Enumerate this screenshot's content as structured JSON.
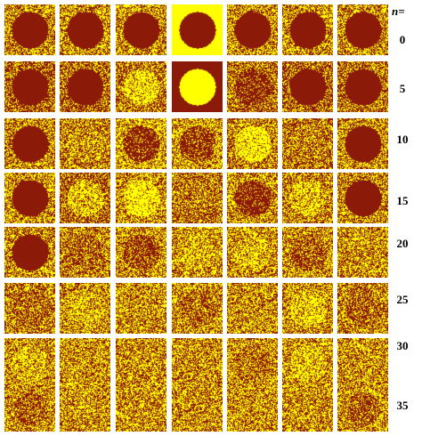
{
  "header_label": "n=",
  "colors": {
    "dark": "#8c1a08",
    "light": "#ffff00"
  },
  "rows": [
    {
      "label": "0",
      "cells": [
        0.5,
        0.5,
        0.5,
        "special-yellow-bg-dark-disk",
        0.5,
        0.5,
        0.5
      ],
      "disk": [
        0,
        0,
        0,
        0.0,
        0,
        0,
        0
      ]
    },
    {
      "label": "5",
      "cells": [
        0.35,
        0.35,
        0.4,
        "special-dark-bg-yellow-disk",
        0.4,
        0.35,
        0.4
      ],
      "disk": [
        0,
        0,
        0.75,
        1.0,
        0.15,
        0,
        0
      ]
    },
    {
      "label": "10",
      "cells": [
        0.45,
        0.45,
        0.6,
        0.55,
        0.45,
        0.4,
        0.5
      ],
      "disk": [
        0,
        0.55,
        0.15,
        0.2,
        0.85,
        0.45,
        0
      ]
    },
    {
      "label": "15",
      "cells": [
        0.5,
        0.35,
        0.5,
        0.4,
        0.5,
        0.45,
        0.45
      ],
      "disk": [
        0,
        0.7,
        0.85,
        0.4,
        0.15,
        0.7,
        0
      ]
    },
    {
      "label": "20",
      "cells": [
        0.5,
        0.45,
        0.5,
        0.5,
        0.5,
        0.5,
        0.5
      ],
      "disk": [
        0,
        0.35,
        0.25,
        0.65,
        0.65,
        0.3,
        0.5
      ]
    },
    {
      "label": "25",
      "cells": [
        0.45,
        0.5,
        0.5,
        0.5,
        0.5,
        0.5,
        0.45
      ],
      "disk": [
        0.35,
        0.65,
        0.5,
        0.35,
        0.5,
        0.7,
        0.35
      ]
    },
    {
      "label": "30",
      "cells": [
        0.5,
        0.5,
        0.5,
        0.5,
        0.5,
        0.5,
        0.5
      ],
      "disk": [
        0.65,
        0.5,
        0.5,
        0.5,
        0.4,
        0.7,
        0.5
      ]
    },
    {
      "label": "35",
      "cells": [
        0.5,
        0.5,
        0.5,
        0.5,
        0.5,
        0.5,
        0.5
      ],
      "disk": [
        0.3,
        0.5,
        0.5,
        0.5,
        0.5,
        0.5,
        0.3
      ]
    }
  ]
}
